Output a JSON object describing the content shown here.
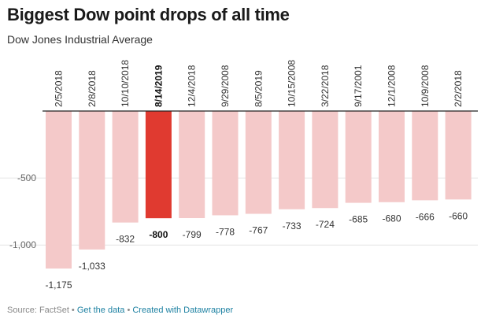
{
  "title": "Biggest Dow point drops of all time",
  "subtitle": "Dow Jones Industrial Average",
  "footer": {
    "source": "Source: FactSet",
    "sep1": " • ",
    "get_data": "Get the data",
    "sep2": " • ",
    "created_with": "Created with Datawrapper"
  },
  "colors": {
    "bar": "#f4c9c9",
    "highlight": "#e03a30",
    "grid": "#e6e6e6",
    "baseline": "#222222"
  },
  "chart_data": {
    "type": "bar",
    "categories": [
      "2/5/2018",
      "2/8/2018",
      "10/10/2018",
      "8/14/2019",
      "12/4/2018",
      "9/29/2008",
      "8/5/2019",
      "10/15/2008",
      "3/22/2018",
      "9/17/2001",
      "12/1/2008",
      "10/9/2008",
      "2/2/2018"
    ],
    "values": [
      -1175,
      -1033,
      -832,
      -800,
      -799,
      -778,
      -767,
      -733,
      -724,
      -685,
      -680,
      -666,
      -660
    ],
    "value_labels": [
      "-1,175",
      "-1,033",
      "-832",
      "-800",
      "-799",
      "-778",
      "-767",
      "-733",
      "-724",
      "-685",
      "-680",
      "-666",
      "-660"
    ],
    "highlight_index": 3,
    "yticks": [
      -500,
      -1000
    ],
    "ytick_labels": [
      "-500",
      "-1,000"
    ],
    "ylim": [
      -1175,
      0
    ],
    "xlabel": "",
    "ylabel": "",
    "grid": true
  }
}
